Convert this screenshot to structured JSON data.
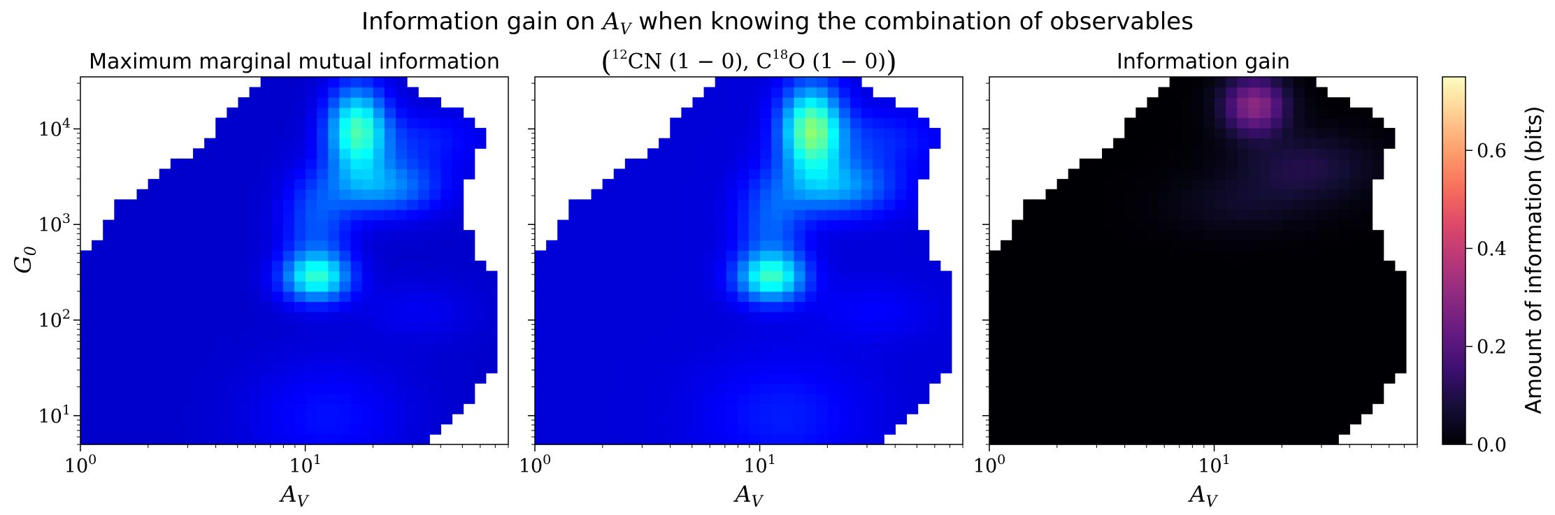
{
  "chart_data": {
    "type": "heatmap",
    "title": "Information gain on A_V when knowing the combination of observables",
    "x_scale": "log",
    "y_scale": "log",
    "xlim": [
      1,
      80
    ],
    "ylim": [
      5,
      35000
    ],
    "x_ticks": [
      {
        "value": 1,
        "base": "10",
        "exp": "0"
      },
      {
        "value": 10,
        "base": "10",
        "exp": "1"
      }
    ],
    "y_ticks": [
      {
        "value": 10,
        "base": "10",
        "exp": "1"
      },
      {
        "value": 100,
        "base": "10",
        "exp": "2"
      },
      {
        "value": 1000,
        "base": "10",
        "exp": "3"
      },
      {
        "value": 10000,
        "base": "10",
        "exp": "4"
      }
    ],
    "xlabel_main": "A",
    "xlabel_sub": "V",
    "ylabel_main": "G",
    "ylabel_sub": "0",
    "panels": [
      {
        "title": "Maximum marginal mutual information",
        "colormap": "jet",
        "vmin": 0,
        "vmax": 1.6,
        "summary": "Low values (~0.1-0.3 bits) at low A_V and low G0; a moderate local maximum (~0.65 bits) near A_V = 11, G0 = 300; highest values (~1.4 bits) near A_V = 23, G0 = 10000."
      },
      {
        "title": "(12CN (1 - 0), C18O (1 - 0))",
        "colormap": "jet",
        "vmin": 0,
        "vmax": 1.6,
        "summary": "Same structure as the first panel with slightly larger values; peak ~1.6 bits near A_V = 23, G0 = 10000."
      },
      {
        "title": "Information gain",
        "colormap": "magma",
        "vmin": 0,
        "vmax": 0.75,
        "summary": "Close to 0 bits almost everywhere; gain up to ~0.3 bits near A_V = 12-20, G0 = 10000-30000, fading to ~0.1 bits along G0 ~ 3000."
      }
    ],
    "colorbar": {
      "label": "Amount of information (bits)",
      "ticks": [
        "0.0",
        "0.2",
        "0.4",
        "0.6"
      ],
      "tick_values": [
        0.0,
        0.2,
        0.4,
        0.6
      ],
      "vmin": 0,
      "vmax": 0.75,
      "colormap": "magma"
    },
    "domain_boundary": {
      "description": "Each panel shows values only inside a region of valid models; outside is blank (white).",
      "left_edge_av_by_log_g0": [
        [
          0.7,
          1.0
        ],
        [
          2.7,
          1.0
        ],
        [
          2.8,
          1.2
        ],
        [
          3.0,
          1.3
        ],
        [
          3.2,
          1.45
        ],
        [
          3.4,
          1.9
        ],
        [
          3.6,
          2.4
        ],
        [
          3.75,
          3.1
        ],
        [
          3.85,
          3.6
        ],
        [
          4.0,
          3.9
        ],
        [
          4.2,
          4.8
        ],
        [
          4.35,
          5.5
        ],
        [
          4.54,
          6.8
        ]
      ],
      "right_edge_av_by_log_g0": [
        [
          0.7,
          33
        ],
        [
          0.85,
          42
        ],
        [
          1.0,
          48
        ],
        [
          1.15,
          55
        ],
        [
          1.3,
          60
        ],
        [
          1.45,
          67
        ],
        [
          1.6,
          72
        ],
        [
          2.0,
          75
        ],
        [
          2.4,
          75
        ],
        [
          2.6,
          62
        ],
        [
          2.8,
          55
        ],
        [
          3.1,
          52
        ],
        [
          3.4,
          52
        ],
        [
          3.6,
          56
        ],
        [
          3.8,
          60
        ],
        [
          4.0,
          62
        ],
        [
          4.15,
          50
        ],
        [
          4.3,
          38
        ],
        [
          4.45,
          30
        ],
        [
          4.54,
          26
        ]
      ]
    }
  }
}
